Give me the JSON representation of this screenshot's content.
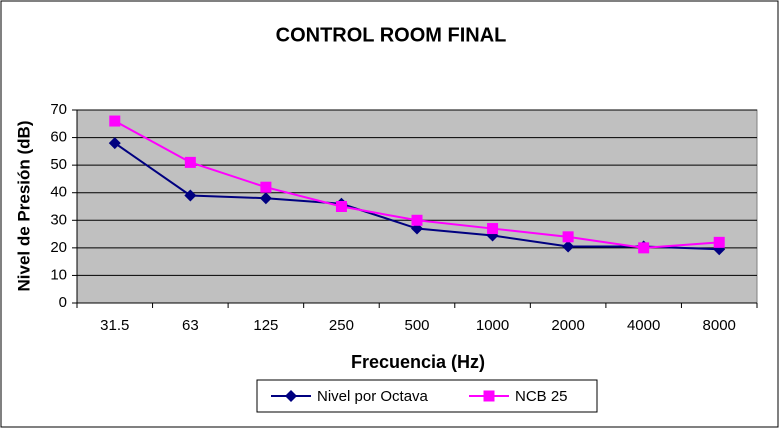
{
  "chart_data": {
    "type": "line",
    "title": "CONTROL ROOM FINAL",
    "x_label": "Frecuencia (Hz)",
    "y_label": "Nivel de Presión (dB)",
    "categories": [
      "31.5",
      "63",
      "125",
      "250",
      "500",
      "1000",
      "2000",
      "4000",
      "8000"
    ],
    "series": [
      {
        "name": "Nivel por Octava",
        "color": "#000080",
        "marker": "diamond",
        "values": [
          58,
          39,
          38,
          36,
          27,
          24.5,
          20.5,
          20.5,
          19.5
        ]
      },
      {
        "name": "NCB 25",
        "color": "#ff00ff",
        "marker": "square",
        "values": [
          66,
          51,
          42,
          35,
          30,
          27,
          24,
          20,
          22
        ]
      }
    ],
    "ylim": [
      0,
      70
    ],
    "yticks": [
      0,
      10,
      20,
      30,
      40,
      50,
      60,
      70
    ],
    "grid": true,
    "legend": "bottom"
  }
}
